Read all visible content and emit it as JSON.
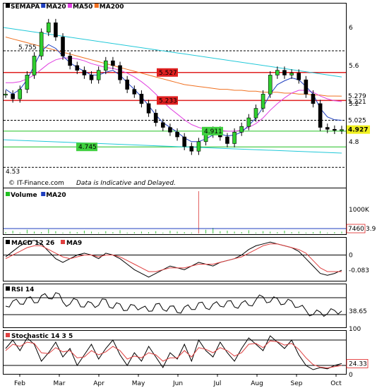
{
  "chart_data": {
    "type": "financial-candlestick",
    "symbol": "SEMAPA",
    "copyright": "© IT-Finance.com",
    "disclaimer": "Data is Indicative and Delayed.",
    "months": [
      "Feb",
      "Mar",
      "Apr",
      "May",
      "Jun",
      "Jul",
      "Aug",
      "Sep",
      "Oct"
    ],
    "price": {
      "ylim": [
        4.45,
        6.2
      ],
      "ticks": [
        "6",
        "5.6",
        "5.2",
        "4.8"
      ],
      "legend": [
        {
          "name": "SEMAPA",
          "color": "#000000"
        },
        {
          "name": "MA20",
          "color": "#1f3fbf"
        },
        {
          "name": "MA50",
          "color": "#e040e0"
        },
        {
          "name": "MA200",
          "color": "#f07020"
        }
      ],
      "levels": [
        {
          "label": "5.755",
          "value": 5.755,
          "color": "#000000",
          "style": "dashed"
        },
        {
          "label": "5.527",
          "value": 5.527,
          "color": "#e02020",
          "style": "solid"
        },
        {
          "label": "5.233",
          "value": 5.233,
          "color": "#e02020",
          "style": "solid"
        },
        {
          "label": "5.025",
          "value": 5.025,
          "color": "#000000",
          "style": "dashed"
        },
        {
          "label": "4.911",
          "value": 4.911,
          "color": "#20c020",
          "style": "solid"
        },
        {
          "label": "4.745",
          "value": 4.745,
          "color": "#20c020",
          "style": "solid"
        },
        {
          "label": "4.53",
          "value": 4.53,
          "color": "#000000",
          "style": "dashed"
        }
      ],
      "right_labels": [
        {
          "label": "5.279",
          "value": 5.279,
          "color": "#f07020"
        },
        {
          "label": "5.221",
          "value": 5.221,
          "color": "#e040e0"
        },
        {
          "label": "5.025",
          "value": 5.025,
          "color": "#1f3fbf"
        },
        {
          "label": "4.927",
          "value": 4.927,
          "color": "#000000",
          "highlight": "#f0f020"
        }
      ],
      "trendlines": [
        {
          "from": [
            "Feb",
            6.0
          ],
          "to": [
            "Oct",
            5.48
          ]
        },
        {
          "from": [
            "Feb",
            4.82
          ],
          "to": [
            "Oct",
            4.68
          ]
        }
      ],
      "close_path": [
        5.3,
        5.25,
        5.35,
        5.5,
        5.7,
        5.95,
        6.05,
        5.9,
        5.7,
        5.6,
        5.55,
        5.5,
        5.45,
        5.55,
        5.65,
        5.6,
        5.45,
        5.35,
        5.3,
        5.2,
        5.1,
        5.0,
        4.95,
        4.9,
        4.85,
        4.75,
        4.7,
        4.8,
        4.88,
        4.92,
        4.85,
        4.78,
        4.9,
        4.96,
        5.05,
        5.15,
        5.3,
        5.5,
        5.55,
        5.5,
        5.52,
        5.45,
        5.3,
        5.2,
        4.95,
        4.93,
        4.92,
        4.927
      ],
      "ma20_path": [
        5.35,
        5.3,
        5.35,
        5.45,
        5.6,
        5.75,
        5.82,
        5.78,
        5.7,
        5.63,
        5.58,
        5.54,
        5.5,
        5.5,
        5.53,
        5.55,
        5.5,
        5.42,
        5.35,
        5.27,
        5.18,
        5.08,
        5.0,
        4.95,
        4.9,
        4.84,
        4.8,
        4.8,
        4.83,
        4.87,
        4.88,
        4.86,
        4.87,
        4.9,
        4.97,
        5.05,
        5.16,
        5.3,
        5.4,
        5.44,
        5.47,
        5.45,
        5.38,
        5.3,
        5.15,
        5.06,
        5.03,
        5.025
      ],
      "ma50_path": [
        5.42,
        5.42,
        5.43,
        5.46,
        5.5,
        5.56,
        5.62,
        5.66,
        5.68,
        5.68,
        5.67,
        5.65,
        5.62,
        5.6,
        5.58,
        5.57,
        5.55,
        5.52,
        5.48,
        5.43,
        5.37,
        5.3,
        5.22,
        5.15,
        5.09,
        5.03,
        4.98,
        4.95,
        4.93,
        4.92,
        4.92,
        4.91,
        4.91,
        4.92,
        4.95,
        4.99,
        5.05,
        5.13,
        5.2,
        5.26,
        5.31,
        5.34,
        5.34,
        5.32,
        5.28,
        5.25,
        5.23,
        5.221
      ],
      "ma200_path": [
        5.9,
        5.88,
        5.86,
        5.84,
        5.82,
        5.8,
        5.78,
        5.76,
        5.74,
        5.72,
        5.7,
        5.68,
        5.66,
        5.64,
        5.62,
        5.6,
        5.58,
        5.56,
        5.54,
        5.52,
        5.5,
        5.48,
        5.46,
        5.44,
        5.42,
        5.4,
        5.39,
        5.38,
        5.37,
        5.36,
        5.35,
        5.35,
        5.34,
        5.34,
        5.33,
        5.33,
        5.32,
        5.32,
        5.32,
        5.31,
        5.31,
        5.3,
        5.3,
        5.29,
        5.29,
        5.28,
        5.28,
        5.279
      ]
    },
    "volume": {
      "legend": [
        {
          "name": "Volume",
          "color": "#20c020"
        },
        {
          "name": "MA20",
          "color": "#1f3fbf"
        }
      ],
      "tick": "1000K",
      "last_label": "7460",
      "last_label_suffix": "3.9",
      "bars": [
        3,
        6,
        2,
        8,
        4,
        3,
        9,
        5,
        2,
        4,
        3,
        6,
        4,
        2,
        5,
        3,
        7,
        2,
        3,
        4,
        3,
        5,
        2,
        6,
        4,
        3,
        2,
        90,
        8,
        12,
        5,
        6,
        4,
        3,
        7,
        2,
        5,
        4,
        3,
        6,
        3,
        4,
        2,
        3,
        5,
        2,
        3,
        4
      ]
    },
    "macd": {
      "title": "MACD 12 26",
      "signal_name": "MA9",
      "zero_tick": "0",
      "last_label": "-0.083",
      "ylim": [
        -0.14,
        0.09
      ],
      "macd_path": [
        -0.01,
        0.02,
        0.05,
        0.07,
        0.08,
        0.06,
        0.02,
        -0.02,
        -0.04,
        -0.02,
        0.0,
        0.01,
        0.0,
        -0.02,
        0.01,
        0.0,
        -0.02,
        -0.05,
        -0.08,
        -0.1,
        -0.12,
        -0.1,
        -0.08,
        -0.06,
        -0.07,
        -0.08,
        -0.06,
        -0.04,
        -0.05,
        -0.06,
        -0.04,
        -0.03,
        -0.02,
        0.0,
        0.03,
        0.05,
        0.06,
        0.07,
        0.06,
        0.05,
        0.04,
        0.02,
        -0.02,
        -0.06,
        -0.1,
        -0.11,
        -0.1,
        -0.083
      ],
      "signal_path": [
        -0.02,
        0.0,
        0.02,
        0.04,
        0.05,
        0.05,
        0.03,
        0.01,
        -0.01,
        -0.02,
        -0.01,
        0.0,
        0.0,
        -0.01,
        0.0,
        0.0,
        -0.01,
        -0.03,
        -0.05,
        -0.07,
        -0.09,
        -0.09,
        -0.08,
        -0.07,
        -0.07,
        -0.07,
        -0.06,
        -0.05,
        -0.05,
        -0.05,
        -0.04,
        -0.03,
        -0.02,
        -0.01,
        0.01,
        0.03,
        0.05,
        0.06,
        0.06,
        0.05,
        0.04,
        0.03,
        0.01,
        -0.03,
        -0.07,
        -0.09,
        -0.09,
        -0.09
      ]
    },
    "rsi": {
      "title": "RSI 14",
      "last_label": "38.65",
      "ylim": [
        0,
        100
      ],
      "values": [
        50,
        62,
        55,
        70,
        58,
        75,
        68,
        82,
        60,
        55,
        65,
        48,
        58,
        52,
        66,
        45,
        55,
        40,
        52,
        46,
        38,
        55,
        42,
        50,
        35,
        48,
        42,
        58,
        45,
        55,
        50,
        62,
        48,
        58,
        52,
        65,
        72,
        60,
        68,
        55,
        62,
        48,
        40,
        30,
        36,
        32,
        40,
        38.65
      ]
    },
    "stochastic": {
      "title": "Stochastic 14 3 5",
      "tick_top": "100",
      "tick_bottom": "0",
      "last_label": "24.33",
      "ylim": [
        0,
        100
      ],
      "k_values": [
        60,
        80,
        55,
        85,
        70,
        30,
        50,
        75,
        40,
        60,
        20,
        45,
        70,
        35,
        60,
        80,
        45,
        20,
        50,
        30,
        65,
        40,
        15,
        50,
        35,
        70,
        30,
        80,
        55,
        40,
        75,
        50,
        30,
        60,
        85,
        70,
        55,
        90,
        75,
        60,
        80,
        45,
        20,
        10,
        15,
        12,
        20,
        24.33
      ],
      "d_values": [
        55,
        70,
        65,
        75,
        72,
        50,
        48,
        62,
        52,
        55,
        38,
        40,
        55,
        45,
        52,
        65,
        55,
        35,
        42,
        38,
        50,
        45,
        30,
        38,
        38,
        55,
        40,
        62,
        58,
        50,
        62,
        55,
        42,
        50,
        70,
        72,
        62,
        78,
        76,
        68,
        72,
        58,
        38,
        22,
        16,
        14,
        17,
        20
      ]
    }
  }
}
